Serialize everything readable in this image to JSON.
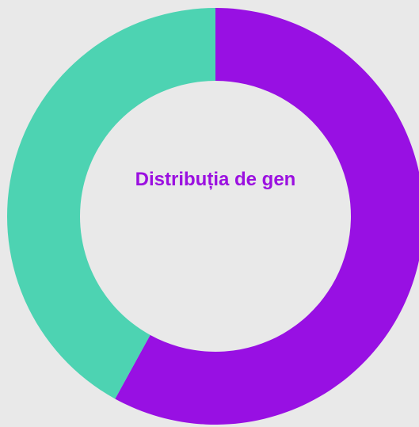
{
  "chart_data": {
    "type": "donut",
    "title": "Distribuția de gen",
    "values": [
      58,
      42
    ],
    "colors": [
      "#9810e3",
      "#4dd3b2"
    ]
  }
}
